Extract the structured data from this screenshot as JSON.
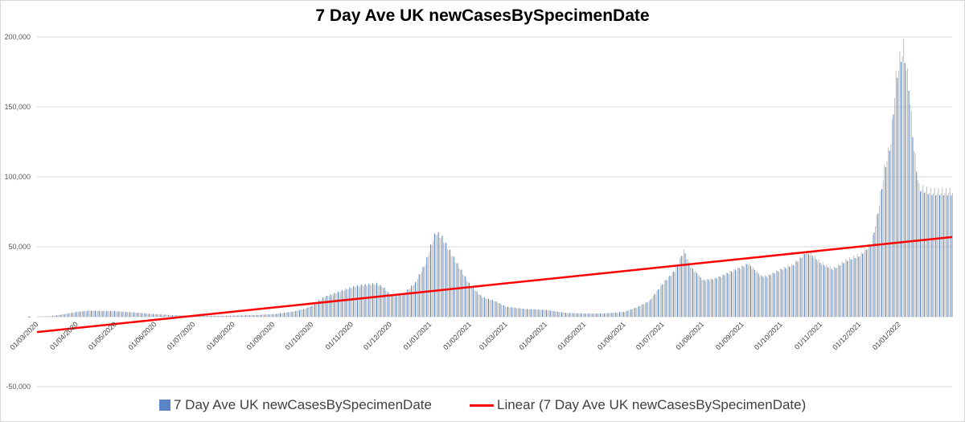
{
  "chart_data": {
    "type": "bar",
    "title": "7 Day Ave UK newCasesBySpecimenDate",
    "xlabel": "",
    "ylabel": "",
    "ylim": [
      -50000,
      200000
    ],
    "y_ticks": [
      -50000,
      0,
      50000,
      100000,
      150000,
      200000
    ],
    "y_tick_labels": [
      "-50,000",
      "-",
      "50,000",
      "100,000",
      "150,000",
      "200,000"
    ],
    "x_start": "01/03/2020",
    "x_end": "11/02/2022",
    "x_tick_labels": [
      "01/03/2020",
      "01/04/2020",
      "01/05/2020",
      "01/06/2020",
      "01/07/2020",
      "01/08/2020",
      "01/09/2020",
      "01/10/2020",
      "01/11/2020",
      "01/12/2020",
      "01/01/2021",
      "01/02/2021",
      "01/03/2021",
      "01/04/2021",
      "01/05/2021",
      "01/06/2021",
      "01/07/2021",
      "01/08/2021",
      "01/09/2021",
      "01/10/2021",
      "01/11/2021",
      "01/12/2021",
      "01/01/2022"
    ],
    "grid": "horizontal",
    "legend_position": "bottom",
    "colors": {
      "bars_primary": "#4f7fc0",
      "bars_secondary": "#bfbfbf",
      "trend": "#ff0000",
      "grid": "#d9d9d9"
    },
    "series": [
      {
        "name": "7 Day Ave UK newCasesBySpecimenDate",
        "kind": "bar",
        "points": [
          [
            "01/03/2020",
            20
          ],
          [
            "10/03/2020",
            300
          ],
          [
            "20/03/2020",
            1500
          ],
          [
            "01/04/2020",
            3500
          ],
          [
            "10/04/2020",
            4300
          ],
          [
            "20/04/2020",
            4100
          ],
          [
            "01/05/2020",
            4000
          ],
          [
            "15/05/2020",
            3000
          ],
          [
            "01/06/2020",
            1800
          ],
          [
            "15/06/2020",
            1100
          ],
          [
            "01/07/2020",
            700
          ],
          [
            "15/07/2020",
            600
          ],
          [
            "01/08/2020",
            800
          ],
          [
            "15/08/2020",
            1100
          ],
          [
            "01/09/2020",
            1800
          ],
          [
            "15/09/2020",
            3500
          ],
          [
            "25/09/2020",
            5500
          ],
          [
            "01/10/2020",
            8000
          ],
          [
            "10/10/2020",
            14000
          ],
          [
            "20/10/2020",
            17000
          ],
          [
            "01/11/2020",
            21000
          ],
          [
            "10/11/2020",
            22500
          ],
          [
            "20/11/2020",
            23500
          ],
          [
            "25/11/2020",
            21000
          ],
          [
            "01/12/2020",
            15000
          ],
          [
            "10/12/2020",
            15500
          ],
          [
            "20/12/2020",
            24000
          ],
          [
            "28/12/2020",
            38000
          ],
          [
            "01/01/2021",
            50000
          ],
          [
            "05/01/2021",
            60000
          ],
          [
            "10/01/2021",
            56000
          ],
          [
            "20/01/2021",
            40000
          ],
          [
            "01/02/2021",
            22000
          ],
          [
            "10/02/2021",
            14000
          ],
          [
            "20/02/2021",
            11000
          ],
          [
            "01/03/2021",
            7000
          ],
          [
            "15/03/2021",
            5500
          ],
          [
            "01/04/2021",
            4800
          ],
          [
            "15/04/2021",
            2800
          ],
          [
            "01/05/2021",
            2200
          ],
          [
            "15/05/2021",
            2200
          ],
          [
            "01/06/2021",
            3500
          ],
          [
            "10/06/2021",
            6500
          ],
          [
            "20/06/2021",
            11000
          ],
          [
            "01/07/2021",
            24000
          ],
          [
            "10/07/2021",
            33000
          ],
          [
            "17/07/2021",
            47000
          ],
          [
            "22/07/2021",
            36000
          ],
          [
            "01/08/2021",
            26000
          ],
          [
            "10/08/2021",
            27000
          ],
          [
            "20/08/2021",
            31000
          ],
          [
            "01/09/2021",
            36000
          ],
          [
            "05/09/2021",
            38000
          ],
          [
            "15/09/2021",
            29000
          ],
          [
            "20/09/2021",
            29000
          ],
          [
            "01/10/2021",
            34000
          ],
          [
            "10/10/2021",
            37000
          ],
          [
            "20/10/2021",
            46000
          ],
          [
            "25/10/2021",
            44000
          ],
          [
            "01/11/2021",
            38000
          ],
          [
            "10/11/2021",
            34000
          ],
          [
            "20/11/2021",
            40000
          ],
          [
            "01/12/2021",
            44000
          ],
          [
            "10/12/2021",
            52000
          ],
          [
            "15/12/2021",
            75000
          ],
          [
            "20/12/2021",
            105000
          ],
          [
            "25/12/2021",
            125000
          ],
          [
            "29/12/2021",
            170000
          ],
          [
            "01/01/2022",
            183000
          ],
          [
            "04/01/2022",
            192000
          ],
          [
            "08/01/2022",
            165000
          ],
          [
            "12/01/2022",
            120000
          ],
          [
            "16/01/2022",
            92000
          ],
          [
            "25/01/2022",
            89000
          ],
          [
            "01/02/2022",
            89000
          ],
          [
            "11/02/2022",
            89000
          ]
        ]
      },
      {
        "name": "Linear (7 Day Ave UK newCasesBySpecimenDate)",
        "kind": "line",
        "points": [
          [
            "01/03/2020",
            -11000
          ],
          [
            "11/02/2022",
            57000
          ]
        ]
      }
    ]
  },
  "legend": {
    "bar_label": "7 Day Ave UK newCasesBySpecimenDate",
    "line_label": "Linear (7 Day Ave UK newCasesBySpecimenDate)"
  }
}
